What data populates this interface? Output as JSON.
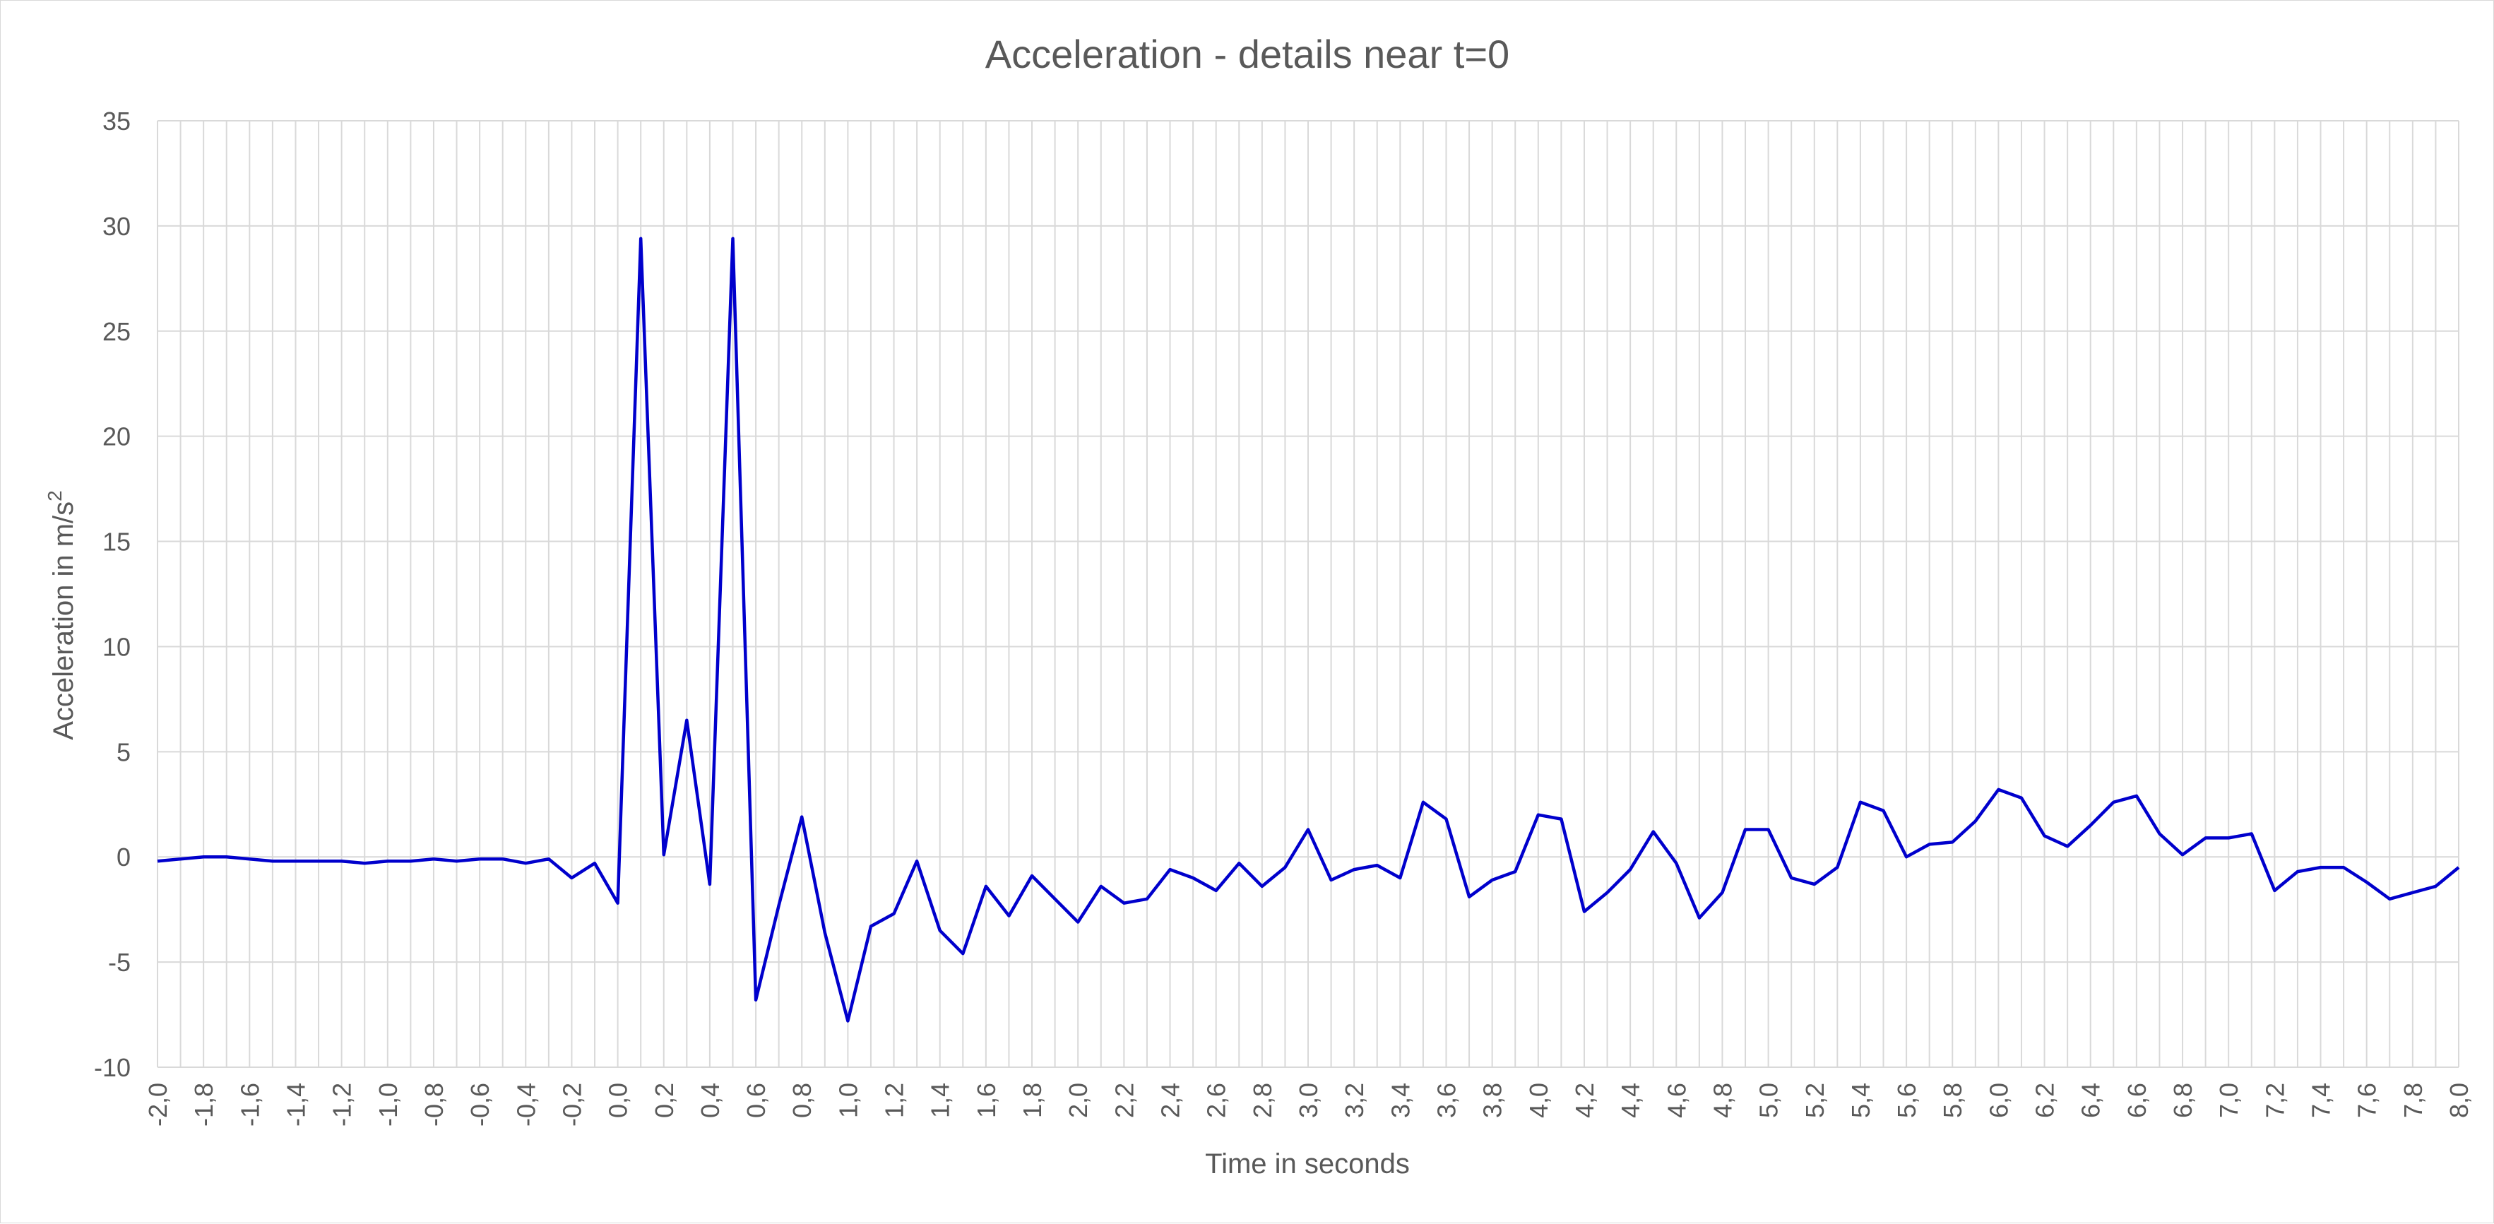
{
  "chart_data": {
    "type": "line",
    "title": "Acceleration - details near t=0",
    "xlabel": "Time in seconds",
    "ylabel": "Acceleration in m/s",
    "ylabel_superscript": "2",
    "xlim": [
      -2.0,
      8.0
    ],
    "ylim": [
      -10,
      35
    ],
    "x_tick_step": 0.1,
    "x_tick_label_step": 0.2,
    "y_ticks": [
      -10,
      -5,
      0,
      5,
      10,
      15,
      20,
      25,
      30,
      35
    ],
    "x_tick_decimal_separator": ",",
    "grid": true,
    "legend": "none",
    "series_color": "#0000cc",
    "series": [
      {
        "x": [
          -2.0,
          -1.9,
          -1.8,
          -1.7,
          -1.6,
          -1.5,
          -1.4,
          -1.3,
          -1.2,
          -1.1,
          -1.0,
          -0.9,
          -0.8,
          -0.7,
          -0.6,
          -0.5,
          -0.4,
          -0.3,
          -0.2,
          -0.1,
          0.0,
          0.1,
          0.2,
          0.3,
          0.4,
          0.5,
          0.6,
          0.7,
          0.8,
          0.9,
          1.0,
          1.1,
          1.2,
          1.3,
          1.4,
          1.5,
          1.6,
          1.7,
          1.8,
          1.9,
          2.0,
          2.1,
          2.2,
          2.3,
          2.4,
          2.5,
          2.6,
          2.7,
          2.8,
          2.9,
          3.0,
          3.1,
          3.2,
          3.3,
          3.4,
          3.5,
          3.6,
          3.7,
          3.8,
          3.9,
          4.0,
          4.1,
          4.2,
          4.3,
          4.4,
          4.5,
          4.6,
          4.7,
          4.8,
          4.9,
          5.0,
          5.1,
          5.2,
          5.3,
          5.4,
          5.5,
          5.6,
          5.7,
          5.8,
          5.9,
          6.0,
          6.1,
          6.2,
          6.3,
          6.4,
          6.5,
          6.6,
          6.7,
          6.8,
          6.9,
          7.0,
          7.1,
          7.2,
          7.3,
          7.4,
          7.5,
          7.6,
          7.7,
          7.8,
          7.9,
          8.0
        ],
        "y": [
          -0.2,
          -0.1,
          0.0,
          0.0,
          -0.1,
          -0.2,
          -0.2,
          -0.2,
          -0.2,
          -0.3,
          -0.2,
          -0.2,
          -0.1,
          -0.2,
          -0.1,
          -0.1,
          -0.3,
          -0.1,
          -1.0,
          -0.3,
          -2.2,
          29.4,
          0.1,
          6.5,
          -1.3,
          29.4,
          -6.8,
          -2.3,
          1.9,
          -3.6,
          -7.8,
          -3.3,
          -2.7,
          -0.2,
          -3.5,
          -4.6,
          -1.4,
          -2.8,
          -0.9,
          -2.0,
          -3.1,
          -1.4,
          -2.2,
          -2.0,
          -0.6,
          -1.0,
          -1.6,
          -0.3,
          -1.4,
          -0.5,
          1.3,
          -1.1,
          -0.6,
          -0.4,
          -1.0,
          2.6,
          1.8,
          -1.9,
          -1.1,
          -0.7,
          2.0,
          1.8,
          -2.6,
          -1.7,
          -0.6,
          1.2,
          -0.3,
          -2.9,
          -1.7,
          1.3,
          1.3,
          -1.0,
          -1.3,
          -0.5,
          2.6,
          2.2,
          0.0,
          0.6,
          0.7,
          1.7,
          3.2,
          2.8,
          1.0,
          0.5,
          1.5,
          2.6,
          2.9,
          1.1,
          0.1,
          0.9,
          0.9,
          1.1,
          -1.6,
          -0.7,
          -0.5,
          -0.5,
          -1.2,
          -2.0,
          -1.7,
          -1.4,
          -0.5
        ]
      }
    ]
  }
}
